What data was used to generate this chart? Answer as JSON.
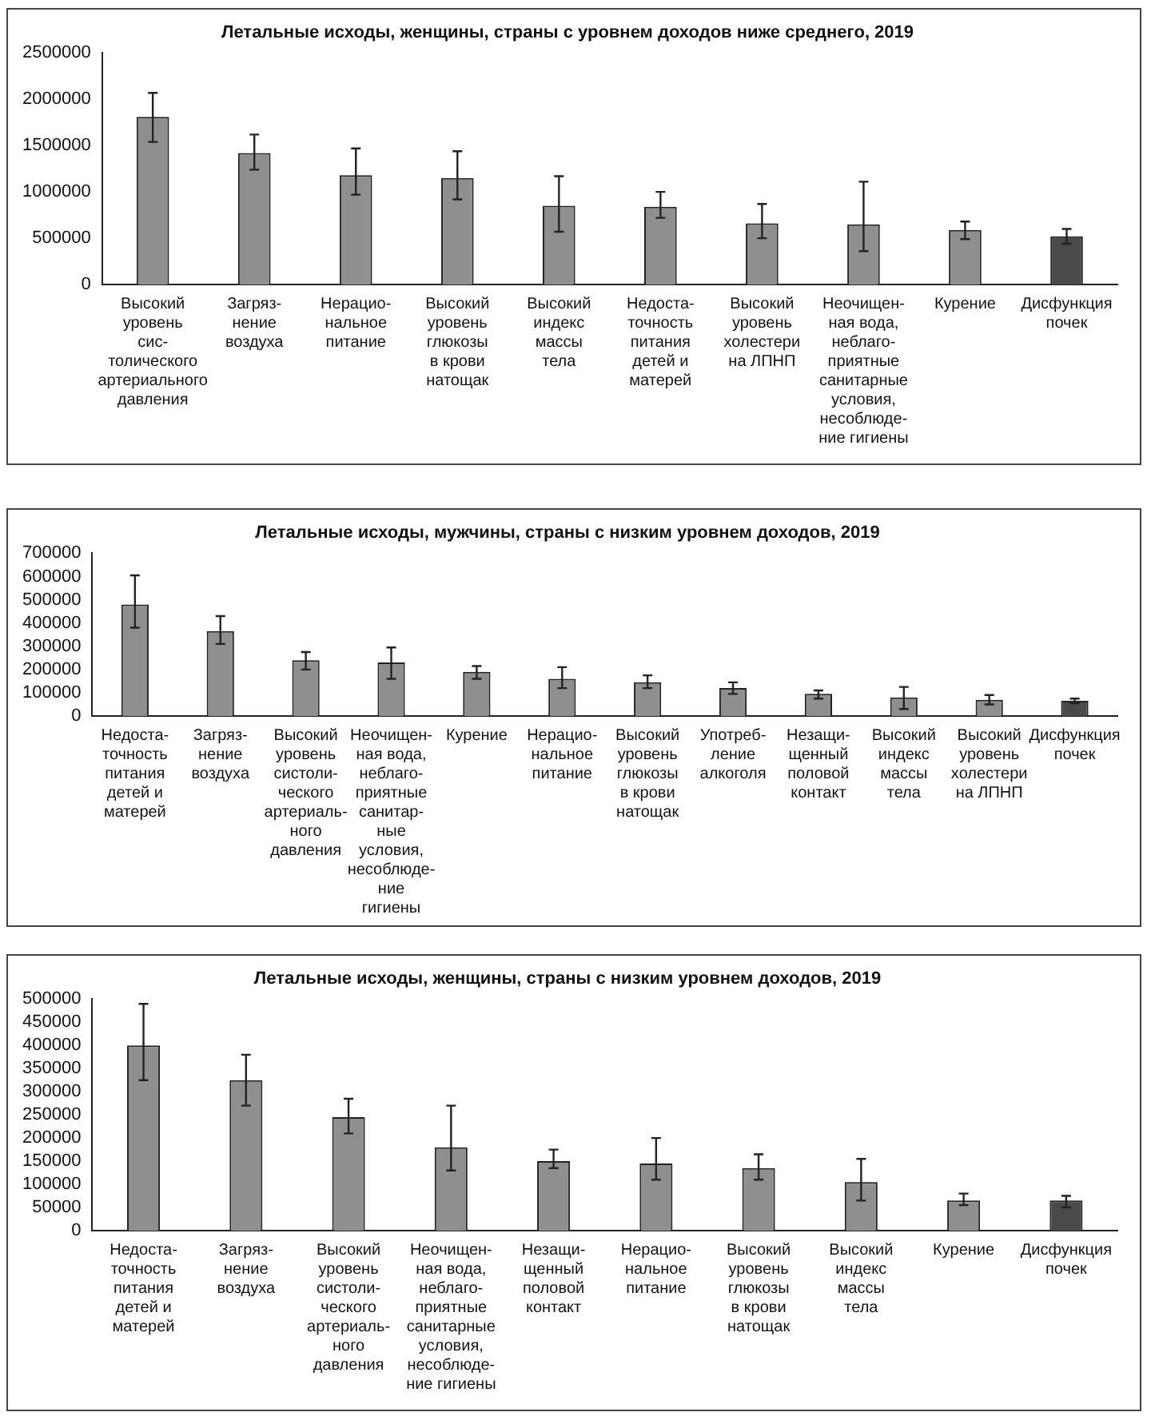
{
  "chart_data": [
    {
      "type": "bar",
      "title": "Летальные исходы, женщины, страны с уровнем доходов ниже среднего, 2019",
      "categories": [
        "Высокий\nуровень сис-\nтолического\nартериального\nдавления",
        "Загряз-\nнение\nвоздуха",
        "Нерацио-\nнальное\nпитание",
        "Высокий\nуровень\nглюкозы\nв крови\nнатощак",
        "Высокий\nиндекс\nмассы\nтела",
        "Недоста-\nточность\nпитания\nдетей и\nматерей",
        "Высокий\nуровень\nхолестери\nна ЛПНП",
        "Неочищен-\nная вода,\nнеблаго-\nприятные\nсанитарные\nусловия,\nнесоблюде-\nние гигиены",
        "Курение",
        "Дисфункция почек"
      ],
      "values": [
        1810000,
        1420000,
        1180000,
        1150000,
        850000,
        840000,
        660000,
        650000,
        590000,
        520000
      ],
      "errors": [
        [
          1540000,
          2070000
        ],
        [
          1240000,
          1620000
        ],
        [
          970000,
          1470000
        ],
        [
          920000,
          1440000
        ],
        [
          570000,
          1170000
        ],
        [
          720000,
          1000000
        ],
        [
          500000,
          870000
        ],
        [
          360000,
          1110000
        ],
        [
          490000,
          680000
        ],
        [
          440000,
          600000
        ]
      ],
      "colors": [
        "#8f8f8f",
        "#8f8f8f",
        "#8f8f8f",
        "#8f8f8f",
        "#8f8f8f",
        "#8f8f8f",
        "#8f8f8f",
        "#8f8f8f",
        "#8f8f8f",
        "#4a4a4a"
      ],
      "ylim": [
        0,
        2500000
      ],
      "yticks": [
        0,
        500000,
        1000000,
        1500000,
        2000000,
        2500000
      ],
      "grid": false,
      "legend": false
    },
    {
      "type": "bar",
      "title": "Летальные исходы, мужчины, страны с низким уровнем доходов, 2019",
      "categories": [
        "Недоста-\nточность\nпитания\nдетей и\nматерей",
        "Загряз-\nнение\nвоздуха",
        "Высокий\nуровень\nсистоли-\nческого\nартериаль-\nного\nдавления",
        "Неочищен-\nная вода,\nнеблаго-\nприятные\nсанитар-\nные условия,\nнесоблюде-\nние гигиены",
        "Курение",
        "Нерацио-\nнальное\nпитание",
        "Высокий\nуровень\nглюкозы\nв крови\nнатощак",
        "Употреб-\nление\nалкоголя",
        "Незащи-\nщенный\nполовой\nконтакт",
        "Высокий\nиндекс\nмассы\nтела",
        "Высокий\nуровень\nхолестери\nна ЛПНП",
        "Дисфункция почек"
      ],
      "values": [
        480000,
        365000,
        240000,
        230000,
        190000,
        160000,
        145000,
        120000,
        95000,
        80000,
        70000,
        65000
      ],
      "errors": [
        [
          380000,
          605000
        ],
        [
          310000,
          430000
        ],
        [
          200000,
          275000
        ],
        [
          160000,
          295000
        ],
        [
          160000,
          215000
        ],
        [
          120000,
          210000
        ],
        [
          120000,
          175000
        ],
        [
          95000,
          145000
        ],
        [
          75000,
          110000
        ],
        [
          30000,
          125000
        ],
        [
          50000,
          90000
        ],
        [
          55000,
          75000
        ]
      ],
      "colors": [
        "#8f8f8f",
        "#8f8f8f",
        "#8f8f8f",
        "#8f8f8f",
        "#8f8f8f",
        "#8f8f8f",
        "#8f8f8f",
        "#8f8f8f",
        "#8f8f8f",
        "#8f8f8f",
        "#8f8f8f",
        "#4a4a4a"
      ],
      "ylim": [
        0,
        700000
      ],
      "yticks": [
        0,
        100000,
        200000,
        300000,
        400000,
        500000,
        600000,
        700000
      ],
      "grid": false,
      "legend": false
    },
    {
      "type": "bar",
      "title": "Летальные исходы, женщины, страны с низким уровнем доходов, 2019",
      "categories": [
        "Недоста-\nточность\nпитания\nдетей и\nматерей",
        "Загряз-\nнение\nвоздуха",
        "Высокий\nуровень\nсистоли-\nческого\nартериаль-\nного\nдавления",
        "Неочищен-\nная вода,\nнеблаго-\nприятные\nсанитарные\nусловия,\nнесоблюде-\nние гигиены",
        "Незащи-\nщенный\nполовой\nконтакт",
        "Нерацио-\nнальное\nпитание",
        "Высокий\nуровень\nглюкозы\nв крови\nнатощак",
        "Высокий\nиндекс\nмассы\nтела",
        "Курение",
        "Дисфункция почек"
      ],
      "values": [
        400000,
        325000,
        245000,
        180000,
        150000,
        145000,
        135000,
        105000,
        65000,
        65000
      ],
      "errors": [
        [
          325000,
          490000
        ],
        [
          270000,
          380000
        ],
        [
          210000,
          285000
        ],
        [
          130000,
          270000
        ],
        [
          135000,
          175000
        ],
        [
          110000,
          200000
        ],
        [
          110000,
          165000
        ],
        [
          65000,
          155000
        ],
        [
          55000,
          80000
        ],
        [
          50000,
          75000
        ]
      ],
      "colors": [
        "#8f8f8f",
        "#8f8f8f",
        "#8f8f8f",
        "#8f8f8f",
        "#8f8f8f",
        "#8f8f8f",
        "#8f8f8f",
        "#8f8f8f",
        "#8f8f8f",
        "#4a4a4a"
      ],
      "ylim": [
        0,
        500000
      ],
      "yticks": [
        0,
        50000,
        100000,
        150000,
        200000,
        250000,
        300000,
        350000,
        400000,
        450000,
        500000
      ],
      "grid": false,
      "legend": false
    }
  ]
}
